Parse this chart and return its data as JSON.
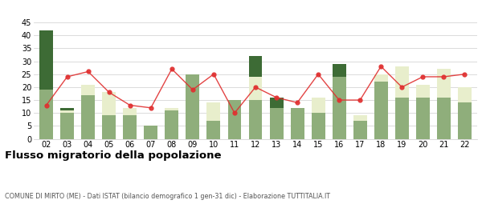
{
  "years": [
    "02",
    "03",
    "04",
    "05",
    "06",
    "07",
    "08",
    "09",
    "10",
    "11",
    "12",
    "13",
    "14",
    "15",
    "16",
    "17",
    "18",
    "19",
    "20",
    "21",
    "22"
  ],
  "iscritti_comuni": [
    19,
    10,
    17,
    9,
    9,
    5,
    11,
    25,
    7,
    15,
    15,
    12,
    12,
    10,
    24,
    7,
    22,
    16,
    16,
    16,
    14
  ],
  "iscritti_estero": [
    0,
    1,
    4,
    9,
    3,
    0,
    1,
    0,
    7,
    0,
    9,
    0,
    0,
    6,
    0,
    2,
    3,
    12,
    5,
    11,
    6
  ],
  "iscritti_altri": [
    23,
    1,
    0,
    0,
    0,
    0,
    0,
    0,
    0,
    0,
    8,
    4,
    0,
    0,
    5,
    0,
    0,
    0,
    0,
    0,
    0
  ],
  "cancellati": [
    13,
    24,
    26,
    18,
    13,
    12,
    27,
    19,
    25,
    10,
    20,
    16,
    14,
    25,
    15,
    15,
    28,
    20,
    24,
    24,
    25
  ],
  "color_comuni": "#8fae7b",
  "color_estero": "#e8eecc",
  "color_altri": "#3d6b35",
  "color_cancellati": "#e03030",
  "title": "Flusso migratorio della popolazione",
  "subtitle": "COMUNE DI MIRTO (ME) - Dati ISTAT (bilancio demografico 1 gen-31 dic) - Elaborazione TUTTITALIA.IT",
  "ylim": [
    0,
    45
  ],
  "yticks": [
    0,
    5,
    10,
    15,
    20,
    25,
    30,
    35,
    40,
    45
  ],
  "bg_color": "#ffffff",
  "grid_color": "#cccccc"
}
